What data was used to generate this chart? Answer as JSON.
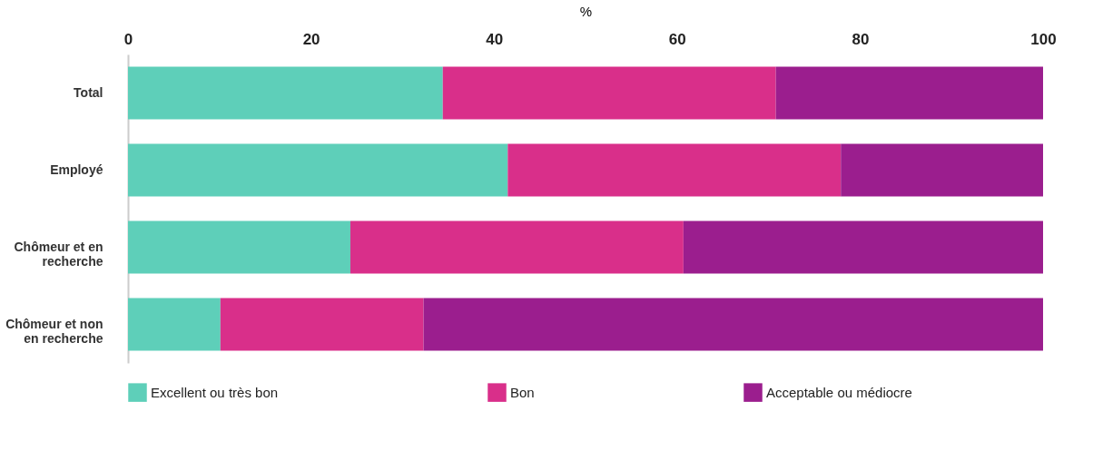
{
  "chart_data": {
    "type": "bar",
    "orientation": "horizontal",
    "stacked": true,
    "xlabel": "%",
    "categories": [
      "Total",
      "Employé",
      "Chômeur et en recherche",
      "Chômeur et non en recherche"
    ],
    "series": [
      {
        "name": "Excellent ou très bon",
        "color": "#5ecfb9",
        "values": [
          34.4,
          41.5,
          24.3,
          10.1
        ]
      },
      {
        "name": "Bon",
        "color": "#d92f8a",
        "values": [
          36.4,
          36.4,
          36.4,
          22.2
        ]
      },
      {
        "name": "Acceptable ou médiocre",
        "color": "#9b1e8e",
        "values": [
          29.2,
          22.1,
          39.3,
          67.7
        ]
      }
    ],
    "xlim": [
      0,
      100
    ],
    "xticks": [
      0,
      20,
      40,
      60,
      80,
      100
    ],
    "grid": false,
    "legend": "bottom"
  }
}
